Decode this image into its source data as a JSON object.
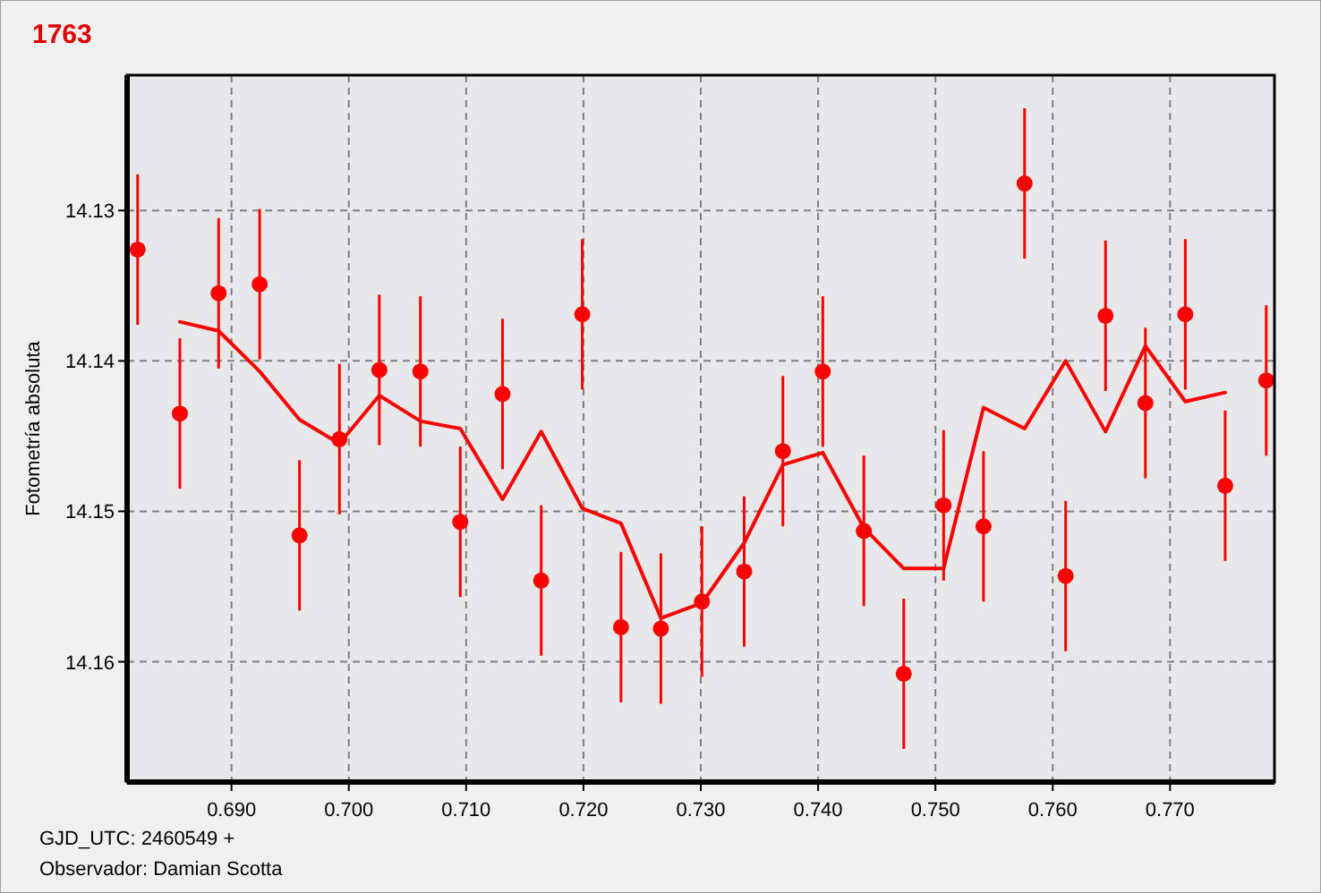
{
  "chart_data": {
    "type": "scatter",
    "title": "1763",
    "ylabel": "Fotometría absoluta",
    "annotations": [
      "GJD_UTC: 2460549 +",
      "Observador: Damian Scotta"
    ],
    "xlim": [
      0.6811,
      0.7789
    ],
    "ylim": [
      14.168,
      14.121
    ],
    "xticks": [
      {
        "value": 0.69,
        "label": "0.690"
      },
      {
        "value": 0.7,
        "label": "0.700"
      },
      {
        "value": 0.71,
        "label": "0.710"
      },
      {
        "value": 0.72,
        "label": "0.720"
      },
      {
        "value": 0.73,
        "label": "0.730"
      },
      {
        "value": 0.74,
        "label": "0.740"
      },
      {
        "value": 0.75,
        "label": "0.750"
      },
      {
        "value": 0.76,
        "label": "0.760"
      },
      {
        "value": 0.77,
        "label": "0.770"
      }
    ],
    "yticks": [
      14.13,
      14.14,
      14.15,
      14.16
    ],
    "grid": true,
    "marker": "circle",
    "series": [
      {
        "color": "#ff0000",
        "x": [
          0.682,
          0.6856,
          0.6889,
          0.6924,
          0.6958,
          0.6992,
          0.7026,
          0.7061,
          0.7095,
          0.7131,
          0.7164,
          0.7199,
          0.7232,
          0.7266,
          0.7301,
          0.7337,
          0.737,
          0.7404,
          0.7439,
          0.7473,
          0.7507,
          0.7541,
          0.7576,
          0.7611,
          0.7645,
          0.7679,
          0.7713,
          0.7747,
          0.7782
        ],
        "values": [
          14.1326,
          14.1435,
          14.1355,
          14.1349,
          14.1516,
          14.1452,
          14.1406,
          14.1407,
          14.1507,
          14.1422,
          14.1546,
          14.1369,
          14.1577,
          14.1578,
          14.156,
          14.154,
          14.146,
          14.1407,
          14.1513,
          14.1608,
          14.1496,
          14.151,
          14.1282,
          14.1543,
          14.137,
          14.1428,
          14.1369,
          14.1483,
          14.1413
        ],
        "errors": [
          0.005,
          0.005,
          0.005,
          0.005,
          0.005,
          0.005,
          0.005,
          0.005,
          0.005,
          0.005,
          0.005,
          0.005,
          0.005,
          0.005,
          0.005,
          0.005,
          0.005,
          0.005,
          0.005,
          0.005,
          0.005,
          0.005,
          0.005,
          0.005,
          0.005,
          0.005,
          0.005,
          0.005,
          0.005
        ]
      },
      {
        "type": "line",
        "color": "#ff0000",
        "marker": "none",
        "line_style": "solid",
        "x": [
          0.6856,
          0.6889,
          0.6924,
          0.6958,
          0.6992,
          0.7026,
          0.7061,
          0.7095,
          0.7131,
          0.7164,
          0.7199,
          0.7232,
          0.7266,
          0.7301,
          0.7337,
          0.737,
          0.7404,
          0.7439,
          0.7473,
          0.7507,
          0.7541,
          0.7576,
          0.7611,
          0.7645,
          0.7679,
          0.7713,
          0.7747
        ],
        "values": [
          14.1374,
          14.138,
          14.1407,
          14.1439,
          14.1455,
          14.1423,
          14.144,
          14.1445,
          14.1492,
          14.1447,
          14.1498,
          14.1508,
          14.1571,
          14.1561,
          14.1521,
          14.1469,
          14.1461,
          14.1511,
          14.1538,
          14.1538,
          14.1431,
          14.1445,
          14.14,
          14.1447,
          14.139,
          14.1427,
          14.1421
        ]
      }
    ]
  }
}
